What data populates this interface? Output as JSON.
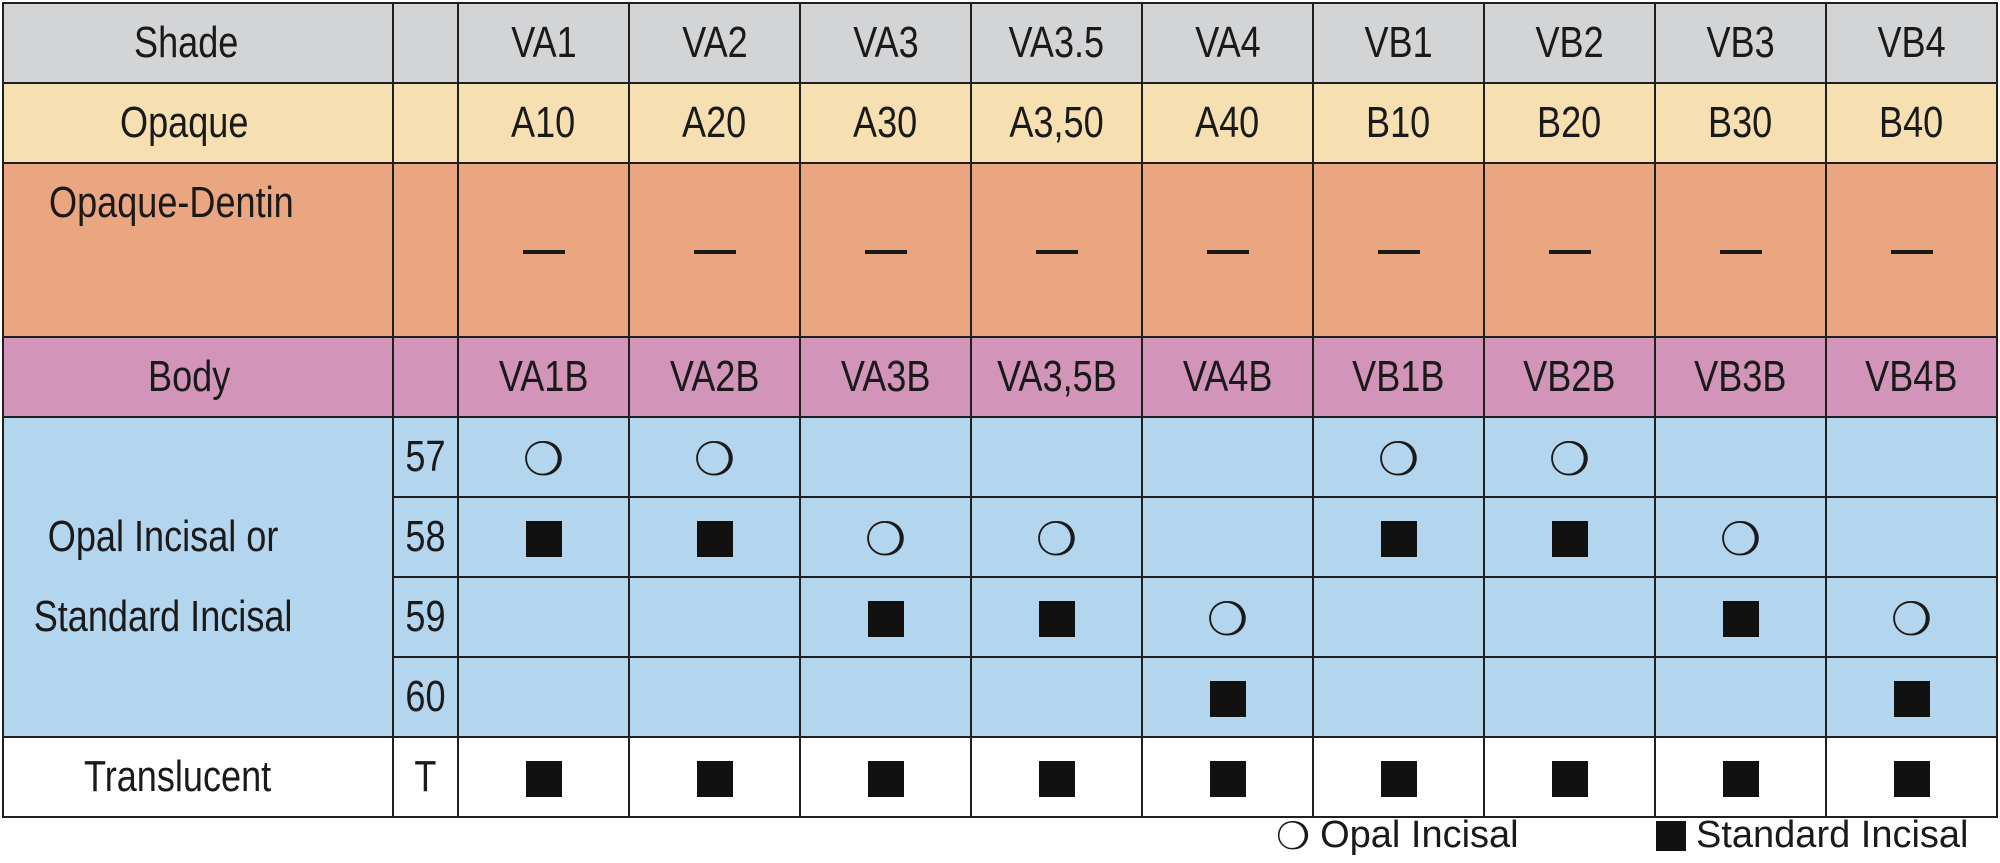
{
  "columns": [
    "VA1",
    "VA2",
    "VA3",
    "VA3.5",
    "VA4",
    "VB1",
    "VB2",
    "VB3",
    "VB4"
  ],
  "rows": {
    "shade": {
      "label": "Shade"
    },
    "opaque": {
      "label": "Opaque",
      "values": [
        "A10",
        "A20",
        "A30",
        "A3,50",
        "A40",
        "B10",
        "B20",
        "B30",
        "B40"
      ]
    },
    "opaque_dentin": {
      "label": "Opaque-Dentin"
    },
    "body": {
      "label": "Body",
      "values": [
        "VA1B",
        "VA2B",
        "VA3B",
        "VA3,5B",
        "VA4B",
        "VB1B",
        "VB2B",
        "VB3B",
        "VB4B"
      ]
    },
    "incisal": {
      "label_line1": "Opal Incisal or",
      "label_line2": "Standard Incisal",
      "sub_rows": [
        {
          "code": "57",
          "marks": [
            "opal",
            "opal",
            "",
            "",
            "",
            "opal",
            "opal",
            "",
            ""
          ]
        },
        {
          "code": "58",
          "marks": [
            "standard",
            "standard",
            "opal",
            "opal",
            "",
            "standard",
            "standard",
            "opal",
            ""
          ]
        },
        {
          "code": "59",
          "marks": [
            "",
            "",
            "standard",
            "standard",
            "opal",
            "",
            "",
            "standard",
            "opal"
          ]
        },
        {
          "code": "60",
          "marks": [
            "",
            "",
            "",
            "",
            "standard",
            "",
            "",
            "",
            "standard"
          ]
        }
      ]
    },
    "translucent": {
      "label": "Translucent",
      "code": "T"
    }
  },
  "legend": {
    "opal": "Opal Incisal",
    "standard": "Standard Incisal"
  },
  "colors": {
    "shade_row": "#d3d4d6",
    "opaque_row": "#f6dfb0",
    "opaque_dentin_row": "#eaa680",
    "body_row": "#d394b9",
    "incisal_rows": "#b3d5ee",
    "translucent_row": "#ffffff"
  }
}
